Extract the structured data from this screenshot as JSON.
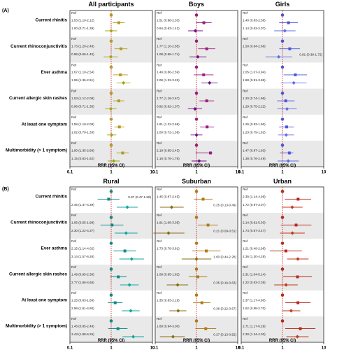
{
  "chart_data": [
    {
      "type": "forest",
      "panel_label": "(A)",
      "row_labels": [
        "Current rhinitis",
        "Current rhinoconjunctivitis",
        "Ever asthma",
        "Current allergic skin rashes",
        "At least one symptom",
        "Multimorbidity (> 1 symptom)"
      ],
      "x_scale": "log",
      "xlim": [
        0.1,
        10
      ],
      "x_ticks": [
        "0.1",
        "1",
        "10"
      ],
      "xlabel": "RRR (95% CI)",
      "reference_line": 1,
      "subplots": [
        {
          "title": "All participants",
          "colors": [
            "#b59a1e",
            "#9fa514"
          ],
          "rows": [
            {
              "ref": "Ref",
              "lines": [
                {
                  "text": "1.53 (1.10-2.12)",
                  "est": 1.53,
                  "lo": 1.1,
                  "hi": 2.12
                },
                {
                  "text": "1.00 (0.71-1.39)",
                  "est": 1.0,
                  "lo": 0.71,
                  "hi": 1.39
                }
              ]
            },
            {
              "ref": "Ref",
              "lines": [
                {
                  "text": "1.73 (1.20-2.48)",
                  "est": 1.73,
                  "lo": 1.2,
                  "hi": 2.48
                },
                {
                  "text": "0.98 (0.66-1.45)",
                  "est": 0.98,
                  "lo": 0.66,
                  "hi": 1.45
                }
              ]
            },
            {
              "ref": "Ref",
              "lines": [
                {
                  "text": "1.67 (1.10-2.54)",
                  "est": 1.67,
                  "lo": 1.1,
                  "hi": 2.54
                },
                {
                  "text": "1.99 (1.36-2.91)",
                  "est": 1.99,
                  "lo": 1.36,
                  "hi": 2.91
                }
              ]
            },
            {
              "ref": "Ref",
              "lines": [
                {
                  "text": "1.53 (1.12-2.08)",
                  "est": 1.53,
                  "lo": 1.12,
                  "hi": 2.08
                },
                {
                  "text": "0.98 (0.71-1.35)",
                  "est": 0.98,
                  "lo": 0.71,
                  "hi": 1.35
                }
              ]
            },
            {
              "ref": "Ref",
              "lines": [
                {
                  "text": "1.58 (1.19-2.09)",
                  "est": 1.58,
                  "lo": 1.19,
                  "hi": 2.09
                },
                {
                  "text": "1.02 (0.79-1.33)",
                  "est": 1.02,
                  "lo": 0.79,
                  "hi": 1.33
                }
              ]
            },
            {
              "ref": "Ref",
              "lines": [
                {
                  "text": "1.90 (1.35-2.69)",
                  "est": 1.9,
                  "lo": 1.35,
                  "hi": 2.69
                },
                {
                  "text": "1.15 (0.83-1.62)",
                  "est": 1.15,
                  "lo": 0.83,
                  "hi": 1.62
                }
              ]
            }
          ]
        },
        {
          "title": "Boys",
          "colors": [
            "#9a1f7e",
            "#6d0d86"
          ],
          "rows": [
            {
              "ref": "Ref",
              "lines": [
                {
                  "text": "1.51 (0.98-2.33)",
                  "est": 1.51,
                  "lo": 0.98,
                  "hi": 2.33
                },
                {
                  "text": "0.94 (0.63-1.42)",
                  "est": 0.94,
                  "lo": 0.63,
                  "hi": 1.42
                }
              ]
            },
            {
              "ref": "Ref",
              "lines": [
                {
                  "text": "1.77 (1.10-2.85)",
                  "est": 1.77,
                  "lo": 1.1,
                  "hi": 2.85
                },
                {
                  "text": "1.08 (0.68-1.74)",
                  "est": 1.08,
                  "lo": 0.68,
                  "hi": 1.74
                }
              ]
            },
            {
              "ref": "Ref",
              "lines": [
                {
                  "text": "1.49 (0.86-2.59)",
                  "est": 1.49,
                  "lo": 0.86,
                  "hi": 2.59
                },
                {
                  "text": "2.08 (1.32-3.26)",
                  "est": 2.08,
                  "lo": 1.32,
                  "hi": 3.26
                }
              ]
            },
            {
              "ref": "Ref",
              "lines": [
                {
                  "text": "1.77 (1.18-2.67)",
                  "est": 1.77,
                  "lo": 1.18,
                  "hi": 2.67
                },
                {
                  "text": "0.92 (0.62-1.37)",
                  "est": 0.92,
                  "lo": 0.62,
                  "hi": 1.37
                }
              ]
            },
            {
              "ref": "Ref",
              "lines": [
                {
                  "text": "1.81 (1.22-2.68)",
                  "est": 1.81,
                  "lo": 1.22,
                  "hi": 2.68
                },
                {
                  "text": "1.00 (0.72-1.39)",
                  "est": 1.0,
                  "lo": 0.72,
                  "hi": 1.39
                }
              ]
            },
            {
              "ref": "Ref",
              "lines": [
                {
                  "text": "2.18 (0.95-2.43)",
                  "est": 2.18,
                  "lo": 0.95,
                  "hi": 2.43
                },
                {
                  "text": "1.16 (0.76-1.76)",
                  "est": 1.16,
                  "lo": 0.76,
                  "hi": 1.76
                }
              ]
            }
          ]
        },
        {
          "title": "Girls",
          "colors": [
            "#4b57d8",
            "#5d6ee8"
          ],
          "rows": [
            {
              "ref": "Ref",
              "lines": [
                {
                  "text": "1.40 (0.83-2.36)",
                  "est": 1.4,
                  "lo": 0.83,
                  "hi": 2.36
                },
                {
                  "text": "1.14 (0.63-2.07)",
                  "est": 1.14,
                  "lo": 0.63,
                  "hi": 2.07
                }
              ]
            },
            {
              "ref": "Ref",
              "lines": [
                {
                  "text": "1.50 (0.84-2.66)",
                  "est": 1.5,
                  "lo": 0.84,
                  "hi": 2.66
                },
                {
                  "text": "0.81 (0.39-1.72)",
                  "est": 0.81,
                  "lo": 0.39,
                  "hi": 1.72,
                  "text_right": true
                }
              ]
            },
            {
              "ref": "Ref",
              "lines": [
                {
                  "text": "2.05 (1.07-3.94)",
                  "est": 2.05,
                  "lo": 1.07,
                  "hi": 3.94
                },
                {
                  "text": "1.88 (0.91-3.86)",
                  "est": 1.88,
                  "lo": 0.91,
                  "hi": 3.86
                }
              ]
            },
            {
              "ref": "Ref",
              "lines": [
                {
                  "text": "1.20 (0.74-1.96)",
                  "est": 1.2,
                  "lo": 0.74,
                  "hi": 1.96
                },
                {
                  "text": "1.29 (0.75-2.22)",
                  "est": 1.29,
                  "lo": 0.75,
                  "hi": 2.22
                }
              ]
            },
            {
              "ref": "Ref",
              "lines": [
                {
                  "text": "1.26 (0.83-1.90)",
                  "est": 1.26,
                  "lo": 0.83,
                  "hi": 1.9
                },
                {
                  "text": "1.23 (0.79-1.92)",
                  "est": 1.23,
                  "lo": 0.79,
                  "hi": 1.92
                }
              ]
            },
            {
              "ref": "Ref",
              "lines": [
                {
                  "text": "1.47 (0.87-1.83)",
                  "est": 1.47,
                  "lo": 0.87,
                  "hi": 1.83
                },
                {
                  "text": "1.38 (0.76-2.49)",
                  "est": 1.38,
                  "lo": 0.76,
                  "hi": 2.49
                }
              ]
            }
          ]
        }
      ]
    },
    {
      "type": "forest",
      "panel_label": "(B)",
      "row_labels": [
        "Current rhinitis",
        "Current rhinoconjunctivitis",
        "Ever asthma",
        "Current allergic skin rashes",
        "At least one symptom",
        "Multimorbidity (> 1 symptom)"
      ],
      "x_scale": "log",
      "xlim": [
        0.1,
        10
      ],
      "x_ticks": [
        "0.1",
        "1",
        "10"
      ],
      "xlabel": "RRR (95% CI)",
      "reference_line": 1,
      "subplots": [
        {
          "title": "Rural",
          "colors": [
            "#0d8a86",
            "#11a5a0"
          ],
          "rows": [
            {
              "ref": "Ref",
              "lines": [
                {
                  "text": "0.87 (0.47-1.59)",
                  "est": 0.87,
                  "lo": 0.47,
                  "hi": 1.59,
                  "text_right": true
                },
                {
                  "text": "2.46 (1.37-4.39)",
                  "est": 2.46,
                  "lo": 1.37,
                  "hi": 4.39
                }
              ]
            },
            {
              "ref": "Ref",
              "lines": [
                {
                  "text": "1.05 (0.55-1.98)",
                  "est": 1.05,
                  "lo": 0.55,
                  "hi": 1.98
                },
                {
                  "text": "2.30 (1.22-4.37)",
                  "est": 2.3,
                  "lo": 1.22,
                  "hi": 4.37
                }
              ]
            },
            {
              "ref": "Ref",
              "lines": [
                {
                  "text": "2.15 (1.14-4.02)",
                  "est": 2.15,
                  "lo": 1.14,
                  "hi": 4.02
                },
                {
                  "text": "3.14 (1.57-6.26)",
                  "est": 3.14,
                  "lo": 1.57,
                  "hi": 6.26
                }
              ]
            },
            {
              "ref": "Ref",
              "lines": [
                {
                  "text": "1.49 (0.95-2.36)",
                  "est": 1.49,
                  "lo": 0.95,
                  "hi": 2.36
                },
                {
                  "text": "2.77 (1.66-4.65)",
                  "est": 2.77,
                  "lo": 1.66,
                  "hi": 4.65
                }
              ]
            },
            {
              "ref": "Ref",
              "lines": [
                {
                  "text": "1.25 (0.83-1.89)",
                  "est": 1.25,
                  "lo": 0.83,
                  "hi": 1.89
                },
                {
                  "text": "2.98 (1.81-4.90)",
                  "est": 2.98,
                  "lo": 1.81,
                  "hi": 4.9
                }
              ]
            },
            {
              "ref": "Ref",
              "lines": [
                {
                  "text": "1.46 (0.85-2.49)",
                  "est": 1.46,
                  "lo": 0.85,
                  "hi": 2.49
                },
                {
                  "text": "3.43 (1.88-6.25)",
                  "est": 3.43,
                  "lo": 1.88,
                  "hi": 6.25
                }
              ]
            }
          ]
        },
        {
          "title": "Suburban",
          "colors": [
            "#b07a17",
            "#8a6d14"
          ],
          "rows": [
            {
              "ref": "Ref",
              "lines": [
                {
                  "text": "1.45 (0.87-2.45)",
                  "est": 1.45,
                  "lo": 0.87,
                  "hi": 2.45
                },
                {
                  "text": "0.25 (0.13-0.49)",
                  "est": 0.25,
                  "lo": 0.13,
                  "hi": 0.49,
                  "text_right": true
                }
              ]
            },
            {
              "ref": "Ref",
              "lines": [
                {
                  "text": "1.91 (1.08-3.35)",
                  "est": 1.91,
                  "lo": 1.08,
                  "hi": 3.35
                },
                {
                  "text": "0.21 (0.09-0.51)",
                  "est": 0.21,
                  "lo": 0.09,
                  "hi": 0.51,
                  "text_right": true
                }
              ]
            },
            {
              "ref": "Ref",
              "lines": [
                {
                  "text": "1.73 (0.79-3.81)",
                  "est": 1.73,
                  "lo": 0.79,
                  "hi": 3.81
                },
                {
                  "text": "1.00 (0.44-2.28)",
                  "est": 1.0,
                  "lo": 0.44,
                  "hi": 2.28,
                  "text_right": true
                }
              ]
            },
            {
              "ref": "Ref",
              "lines": [
                {
                  "text": "1.08 (0.65-1.82)",
                  "est": 1.08,
                  "lo": 0.65,
                  "hi": 1.82
                },
                {
                  "text": "0.35 (0.19-0.63)",
                  "est": 0.35,
                  "lo": 0.19,
                  "hi": 0.63,
                  "text_right": true
                }
              ]
            },
            {
              "ref": "Ref",
              "lines": [
                {
                  "text": "1.35 (0.83-2.19)",
                  "est": 1.35,
                  "lo": 0.83,
                  "hi": 2.19
                },
                {
                  "text": "0.36 (0.22-0.57)",
                  "est": 0.36,
                  "lo": 0.22,
                  "hi": 0.57,
                  "text_right": true
                }
              ]
            },
            {
              "ref": "Ref",
              "lines": [
                {
                  "text": "1.68 (0.94-3.00)",
                  "est": 1.68,
                  "lo": 0.94,
                  "hi": 3.0
                },
                {
                  "text": "0.27 (0.13-0.52)",
                  "est": 0.27,
                  "lo": 0.13,
                  "hi": 0.52,
                  "text_right": true
                }
              ]
            }
          ]
        },
        {
          "title": "Urban",
          "colors": [
            "#b8291c",
            "#c03a1f"
          ],
          "rows": [
            {
              "ref": "Ref",
              "lines": [
                {
                  "text": "2.39 (1.14-4.96)",
                  "est": 2.39,
                  "lo": 1.14,
                  "hi": 4.96
                },
                {
                  "text": "1.72 (0.97-3.07)",
                  "est": 1.72,
                  "lo": 0.97,
                  "hi": 3.07
                }
              ]
            },
            {
              "ref": "Ref",
              "lines": [
                {
                  "text": "2.14 (0.91-5.03)",
                  "est": 2.14,
                  "lo": 0.91,
                  "hi": 5.03
                },
                {
                  "text": "1.74 (0.87-3.47)",
                  "est": 1.74,
                  "lo": 0.87,
                  "hi": 3.47
                }
              ]
            },
            {
              "ref": "Ref",
              "lines": [
                {
                  "text": "1.21 (0.49-2.96)",
                  "est": 1.21,
                  "lo": 0.49,
                  "hi": 2.96
                },
                {
                  "text": "2.36 (1.30-4.28)",
                  "est": 2.36,
                  "lo": 1.3,
                  "hi": 4.28
                }
              ]
            },
            {
              "ref": "Ref",
              "lines": [
                {
                  "text": "2.31 (1.04-5.14)",
                  "est": 2.31,
                  "lo": 1.04,
                  "hi": 5.14
                },
                {
                  "text": "1.22 (0.63-2.35)",
                  "est": 1.22,
                  "lo": 0.63,
                  "hi": 2.35
                }
              ]
            },
            {
              "ref": "Ref",
              "lines": [
                {
                  "text": "2.37 (1.17-4.80)",
                  "est": 2.37,
                  "lo": 1.17,
                  "hi": 4.8
                },
                {
                  "text": "1.62 (0.98-2.70)",
                  "est": 1.62,
                  "lo": 0.98,
                  "hi": 2.7
                }
              ]
            },
            {
              "ref": "Ref",
              "lines": [
                {
                  "text": "2.71 (1.17-6.29)",
                  "est": 2.71,
                  "lo": 1.17,
                  "hi": 6.29
                },
                {
                  "text": "2.30 (1.24-4.30)",
                  "est": 2.3,
                  "lo": 1.24,
                  "hi": 4.3
                }
              ]
            }
          ]
        }
      ]
    }
  ],
  "style": {
    "ref_line_color": "#d42a2a",
    "band_color": "#e9e9e9",
    "ref_dot_colors_A": [
      "#b59a1e",
      "#9a1f7e",
      "#4b57d8"
    ],
    "ref_dot_colors_B": [
      "#0d8a86",
      "#b07a17",
      "#b8291c"
    ]
  }
}
